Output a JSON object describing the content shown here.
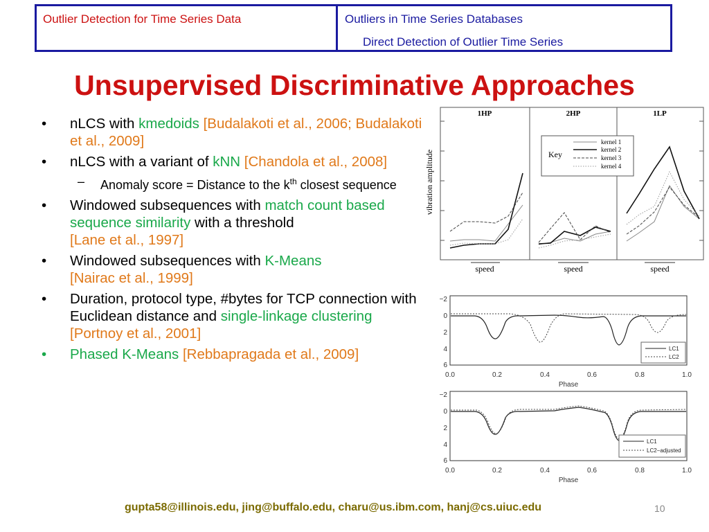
{
  "header": {
    "left": "Outlier Detection for Time Series Data",
    "right_line1": "Outliers in Time Series Databases",
    "right_line2": "Direct Detection of Outlier Time Series"
  },
  "title": "Unsupervised Discriminative Approaches",
  "bullets": [
    {
      "pre": "nLCS with ",
      "green": "kmedoids",
      "post": "",
      "ref": " [Budalakoti et al., 2006; Budalakoti et al., 2009]"
    },
    {
      "pre": "nLCS with a variant of ",
      "green": "kNN",
      "post": "",
      "ref": " [Chandola et al., 2008]"
    },
    {
      "sub_pre": "Anomaly score = Distance to the k",
      "sub_sup": "th",
      "sub_post": " closest sequence"
    },
    {
      "pre": "Windowed subsequences with ",
      "green": "match count based sequence similarity",
      "post": " with a threshold",
      "ref": "[Lane et al., 1997]"
    },
    {
      "pre": "Windowed subsequences with ",
      "green": "K-Means",
      "post": "",
      "ref": "[Nairac et al., 1999]"
    },
    {
      "pre": "Duration, protocol type, #bytes for TCP connection with Euclidean distance and ",
      "green": "single-linkage clustering",
      "post": "",
      "ref": "[Portnoy et al., 2001]"
    },
    {
      "green": "Phased K-Means",
      "ref": "[Rebbapragada et al., 2009]"
    }
  ],
  "figure_top": {
    "panels": [
      "1HP",
      "2HP",
      "1LP"
    ],
    "xlabel": "speed",
    "ylabel": "vibration amplitude",
    "key_title": "Key",
    "key_items": [
      "kernel 1",
      "kernel 2",
      "kernel 3",
      "kernel 4"
    ]
  },
  "figure_lc1": {
    "yticks": [
      "−2",
      "0",
      "2",
      "4",
      "6"
    ],
    "xticks": [
      "0.0",
      "0.2",
      "0.4",
      "0.6",
      "0.8",
      "1.0"
    ],
    "xlabel": "Phase",
    "legend": [
      "LC1",
      "LC2"
    ]
  },
  "figure_lc2": {
    "yticks": [
      "−2",
      "0",
      "2",
      "4",
      "6"
    ],
    "xticks": [
      "0.0",
      "0.2",
      "0.4",
      "0.6",
      "0.8",
      "1.0"
    ],
    "xlabel": "Phase",
    "legend": [
      "LC1",
      "LC2−adjusted"
    ]
  },
  "footer": "gupta58@illinois.edu, jing@buffalo.edu, charu@us.ibm.com, hanj@cs.uiuc.edu",
  "page_number": "10"
}
